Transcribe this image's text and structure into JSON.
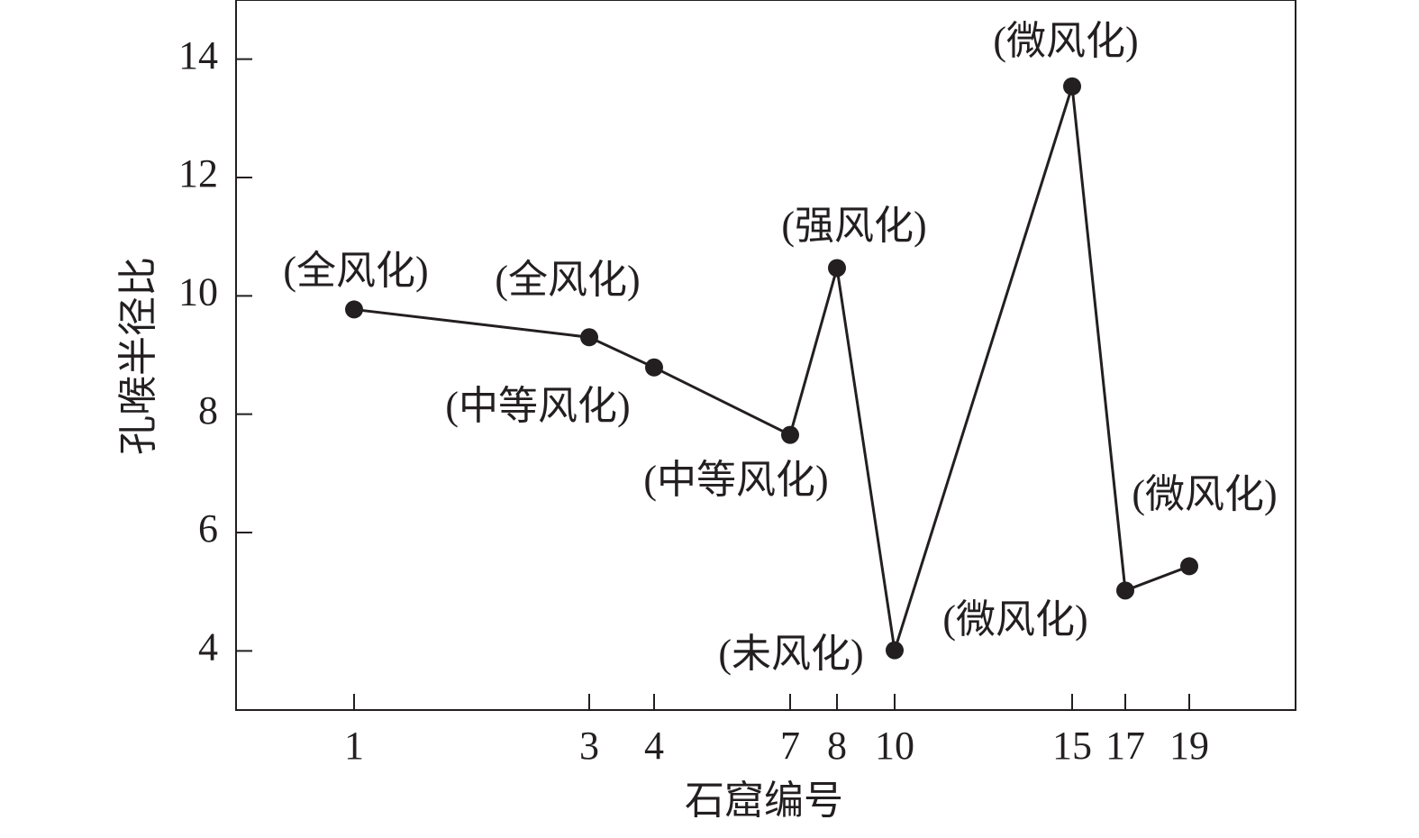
{
  "chart_data": {
    "type": "line",
    "x_label": "石窟编号",
    "y_label": "孔喉半径比",
    "categories": [
      "1",
      "3",
      "4",
      "7",
      "8",
      "10",
      "15",
      "17",
      "19"
    ],
    "series": [
      {
        "name": "孔喉半径比",
        "color": "#231f20",
        "values": [
          9.77,
          9.3,
          8.79,
          7.65,
          10.47,
          4.01,
          13.54,
          5.02,
          5.43
        ]
      }
    ],
    "ylim": [
      3,
      15
    ],
    "yticks": [
      4,
      6,
      8,
      10,
      12,
      14
    ],
    "grid": false,
    "annotations": [
      "(全风化)",
      "(全风化)",
      "(中等风化)",
      "(中等风化)",
      "(强风化)",
      "(未风化)",
      "(微风化)",
      "(微风化)",
      "(微风化)"
    ]
  }
}
